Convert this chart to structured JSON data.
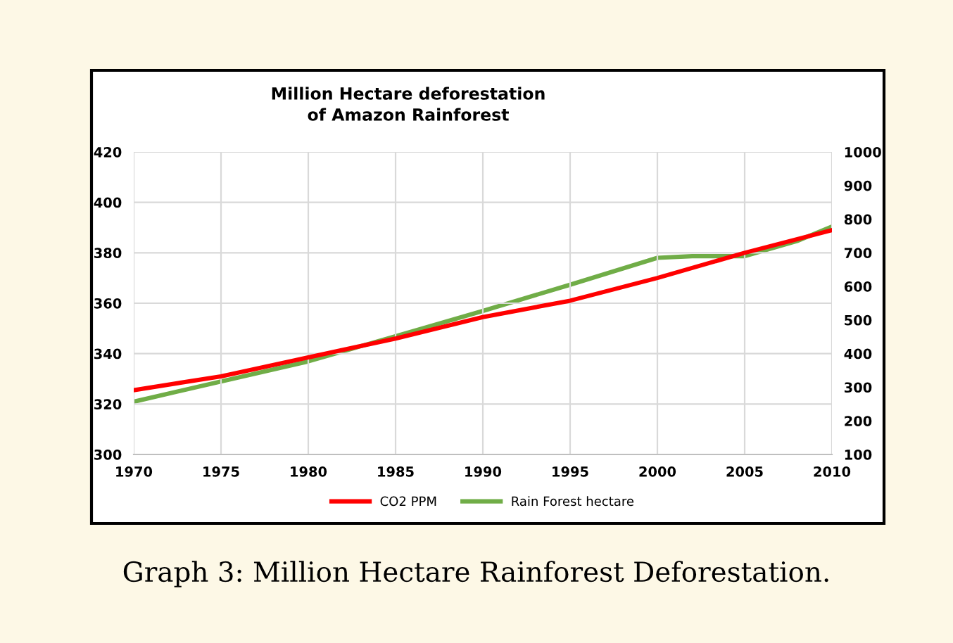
{
  "chart_data": {
    "type": "line",
    "title": "Million Hectare deforestation\nof Amazon Rainforest",
    "x": [
      1970,
      1975,
      1980,
      1985,
      1990,
      1995,
      2000,
      2002,
      2005,
      2008,
      2010
    ],
    "series": [
      {
        "name": "CO2 PPM",
        "color": "#ff0000",
        "x": [
          1970,
          1975,
          1980,
          1985,
          1990,
          1995,
          2000,
          2005,
          2010
        ],
        "values": [
          325.5,
          331,
          338.5,
          346,
          354.5,
          361,
          370,
          380,
          389
        ]
      },
      {
        "name": "Rain Forest hectare",
        "color": "#70ad47",
        "axis": "y2",
        "values": [
          257,
          317,
          377,
          452,
          527,
          605,
          685,
          690,
          690,
          735,
          778
        ]
      }
    ],
    "xlim": [
      1970,
      2010
    ],
    "xticks": [
      1970,
      1975,
      1980,
      1985,
      1990,
      1995,
      2000,
      2005,
      2010
    ],
    "ylim": [
      300,
      420
    ],
    "yticks": [
      300,
      320,
      340,
      360,
      380,
      400,
      420
    ],
    "y2lim": [
      100,
      1000
    ],
    "y2ticks": [
      100,
      200,
      300,
      400,
      500,
      600,
      700,
      800,
      900,
      1000
    ],
    "grid": true,
    "legend": "bottom",
    "marker": "none",
    "line_style": "solid",
    "annotations": [
      "Graph 3: Million Hectare Rainforest Deforestation."
    ]
  }
}
